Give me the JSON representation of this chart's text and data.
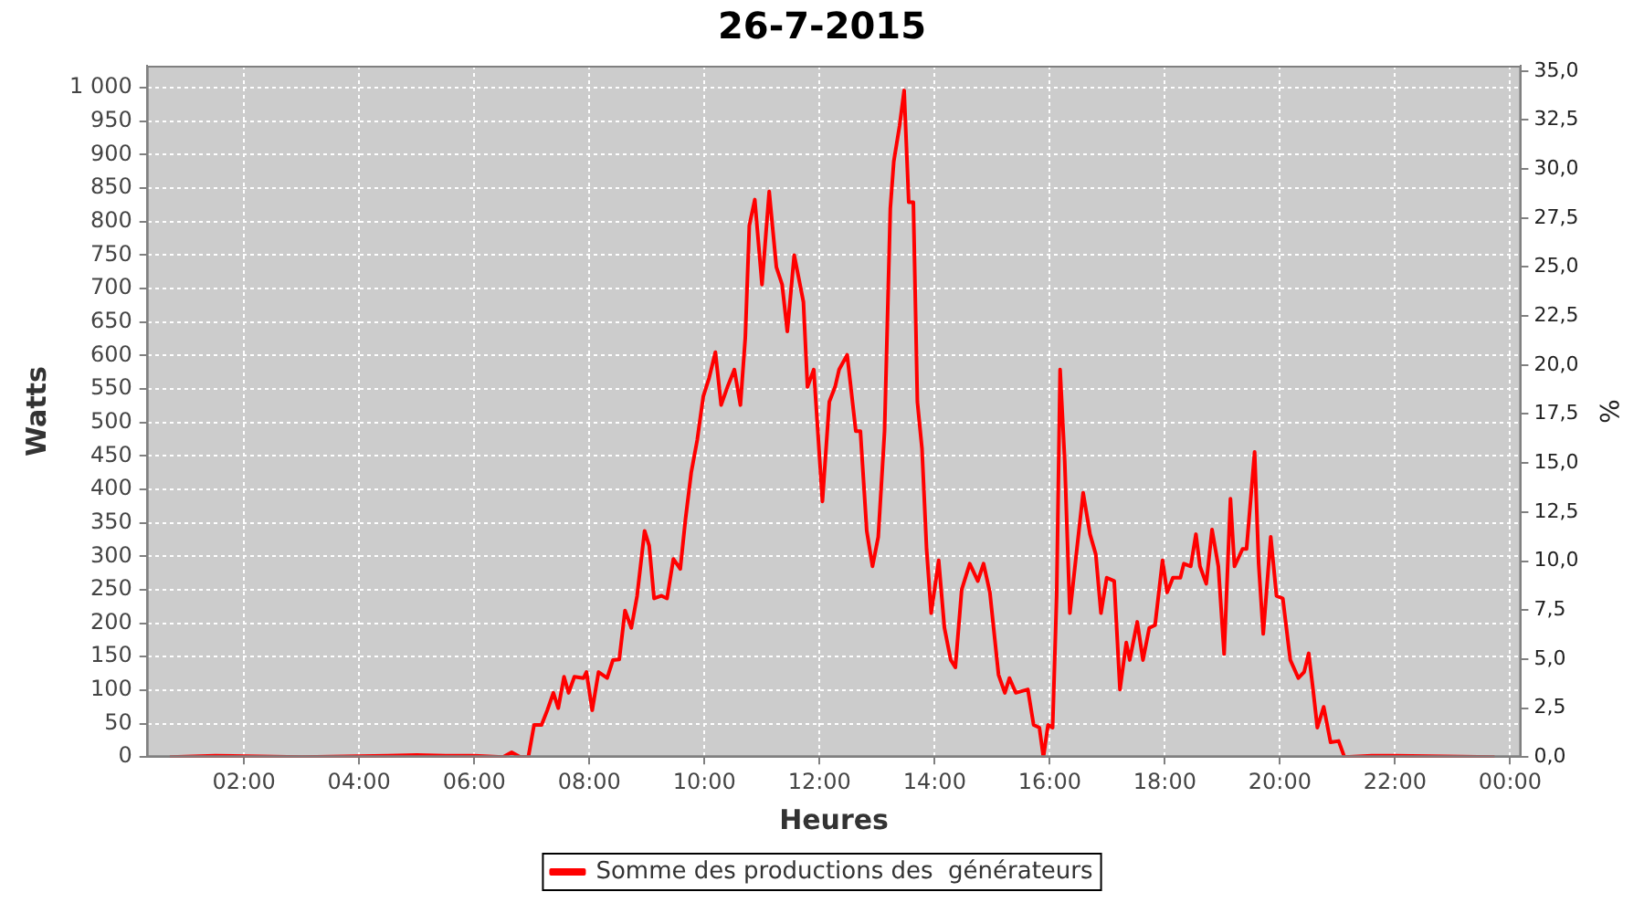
{
  "chart_data": {
    "type": "line",
    "title": "26-7-2015",
    "xlabel": "Heures",
    "ylabel": "Watts",
    "y2label": "%",
    "x": [
      0.71,
      1.5,
      3,
      4.5,
      5,
      5.5,
      6,
      6.5,
      6.65,
      6.8,
      6.94,
      7.04,
      7.17,
      7.27,
      7.375,
      7.46,
      7.56,
      7.64,
      7.74,
      7.9,
      7.95,
      8.05,
      8.16,
      8.31,
      8.41,
      8.52,
      8.62,
      8.73,
      8.83,
      8.96,
      9.04,
      9.125,
      9.25,
      9.35,
      9.46,
      9.58,
      9.67,
      9.77,
      9.875,
      9.98,
      10.08,
      10.19,
      10.29,
      10.4,
      10.52,
      10.625,
      10.71,
      10.78,
      10.875,
      11.0,
      11.125,
      11.25,
      11.35,
      11.44,
      11.56,
      11.72,
      11.79,
      11.9,
      12.05,
      12.17,
      12.27,
      12.34,
      12.48,
      12.55,
      12.63,
      12.71,
      12.82,
      12.92,
      13.02,
      13.13,
      13.23,
      13.29,
      13.39,
      13.47,
      13.55,
      13.63,
      13.7,
      13.78,
      13.86,
      13.94,
      14.07,
      14.17,
      14.28,
      14.36,
      14.47,
      14.61,
      14.75,
      14.85,
      14.96,
      15.11,
      15.22,
      15.3,
      15.41,
      15.62,
      15.72,
      15.82,
      15.89,
      15.97,
      16.05,
      16.12,
      16.18,
      16.26,
      16.35,
      16.45,
      16.58,
      16.7,
      16.8,
      16.89,
      16.99,
      17.12,
      17.22,
      17.33,
      17.39,
      17.52,
      17.62,
      17.73,
      17.83,
      17.96,
      18.04,
      18.14,
      18.27,
      18.33,
      18.45,
      18.54,
      18.61,
      18.72,
      18.82,
      18.93,
      19.03,
      19.14,
      19.21,
      19.35,
      19.42,
      19.56,
      19.63,
      19.71,
      19.84,
      19.94,
      20.05,
      20.18,
      20.32,
      20.42,
      20.5,
      20.57,
      20.65,
      20.76,
      20.88,
      21.02,
      21.12,
      21.6,
      22.0,
      23.73
    ],
    "series": [
      {
        "name": "Somme des productions des  générateurs",
        "color": "#ff0000",
        "values": [
          0,
          2,
          0,
          2,
          3,
          2,
          2,
          0,
          7,
          0,
          0,
          48,
          48,
          70,
          96,
          73,
          120,
          96,
          120,
          118,
          127,
          70,
          127,
          118,
          145,
          146,
          219,
          193,
          241,
          338,
          316,
          237,
          241,
          237,
          296,
          281,
          355,
          425,
          474,
          539,
          566,
          605,
          526,
          553,
          579,
          526,
          627,
          794,
          833,
          706,
          845,
          732,
          706,
          636,
          750,
          680,
          553,
          579,
          382,
          531,
          553,
          579,
          601,
          548,
          487,
          487,
          338,
          285,
          329,
          487,
          820,
          890,
          943,
          996,
          829,
          829,
          531,
          461,
          311,
          215,
          294,
          193,
          145,
          134,
          250,
          289,
          263,
          289,
          246,
          123,
          96,
          118,
          96,
          101,
          48,
          44,
          0,
          48,
          44,
          241,
          579,
          443,
          215,
          294,
          395,
          333,
          303,
          215,
          268,
          263,
          101,
          171,
          145,
          202,
          145,
          193,
          197,
          294,
          246,
          268,
          268,
          289,
          285,
          333,
          285,
          259,
          340,
          285,
          154,
          386,
          285,
          311,
          311,
          456,
          289,
          184,
          329,
          241,
          237,
          145,
          118,
          127,
          155,
          105,
          44,
          75,
          22,
          24,
          0,
          2,
          2,
          0
        ]
      }
    ],
    "xlim": [
      0.31,
      24.19
    ],
    "xticks": [
      {
        "value": 2,
        "label": "02:00"
      },
      {
        "value": 4,
        "label": "04:00"
      },
      {
        "value": 6,
        "label": "06:00"
      },
      {
        "value": 8,
        "label": "08:00"
      },
      {
        "value": 10,
        "label": "10:00"
      },
      {
        "value": 12,
        "label": "12:00"
      },
      {
        "value": 14,
        "label": "14:00"
      },
      {
        "value": 16,
        "label": "16:00"
      },
      {
        "value": 18,
        "label": "18:00"
      },
      {
        "value": 20,
        "label": "20:00"
      },
      {
        "value": 22,
        "label": "22:00"
      },
      {
        "value": 24,
        "label": "00:00"
      }
    ],
    "ylim": [
      0,
      1033
    ],
    "yticks": [
      0,
      50,
      100,
      150,
      200,
      250,
      300,
      350,
      400,
      450,
      500,
      550,
      600,
      650,
      700,
      750,
      800,
      850,
      900,
      950,
      {
        "value": 1000,
        "label": "1 000"
      }
    ],
    "y2lim": [
      0,
      35.27
    ],
    "y2ticks": [
      {
        "value": 0,
        "label": "0,0"
      },
      {
        "value": 2.5,
        "label": "2,5"
      },
      {
        "value": 5,
        "label": "5,0"
      },
      {
        "value": 7.5,
        "label": "7,5"
      },
      {
        "value": 10,
        "label": "10,0"
      },
      {
        "value": 12.5,
        "label": "12,5"
      },
      {
        "value": 15,
        "label": "15,0"
      },
      {
        "value": 17.5,
        "label": "17,5"
      },
      {
        "value": 20,
        "label": "20,0"
      },
      {
        "value": 22.5,
        "label": "22,5"
      },
      {
        "value": 25,
        "label": "25,0"
      },
      {
        "value": 27.5,
        "label": "27,5"
      },
      {
        "value": 30,
        "label": "30,0"
      },
      {
        "value": 32.5,
        "label": "32,5"
      },
      {
        "value": 35,
        "label": "35,0"
      }
    ],
    "grid": true,
    "legend": "bottom",
    "marker": "none",
    "line_style": "solid"
  }
}
